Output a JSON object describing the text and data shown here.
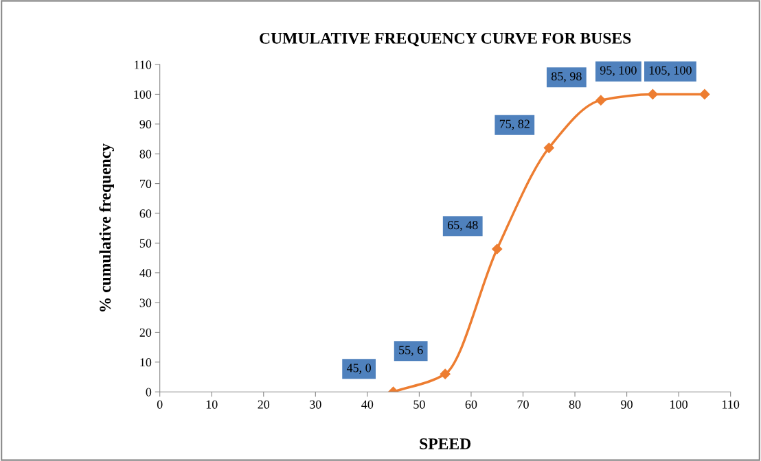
{
  "chart_data": {
    "type": "line",
    "title": "CUMULATIVE FREQUENCY CURVE FOR BUSES",
    "xlabel": "SPEED",
    "ylabel": "% cumulative frequency",
    "series": [
      {
        "color": "#ed7d31",
        "x": [
          45,
          55,
          65,
          75,
          85,
          95,
          105
        ],
        "values": [
          0,
          6,
          48,
          82,
          98,
          100,
          100
        ],
        "value_labels": [
          "45, 0",
          "55, 6",
          "65, 48",
          "75, 82",
          "85, 98",
          "95, 100",
          "105, 100"
        ]
      }
    ],
    "xlim": [
      0,
      110
    ],
    "xticks": [
      0,
      10,
      20,
      30,
      40,
      50,
      60,
      70,
      80,
      90,
      100,
      110
    ],
    "ylim": [
      0,
      110
    ],
    "yticks": [
      0,
      10,
      20,
      30,
      40,
      50,
      60,
      70,
      80,
      90,
      100,
      110
    ],
    "marker": "diamond",
    "line_style": "solid",
    "grid": false
  }
}
